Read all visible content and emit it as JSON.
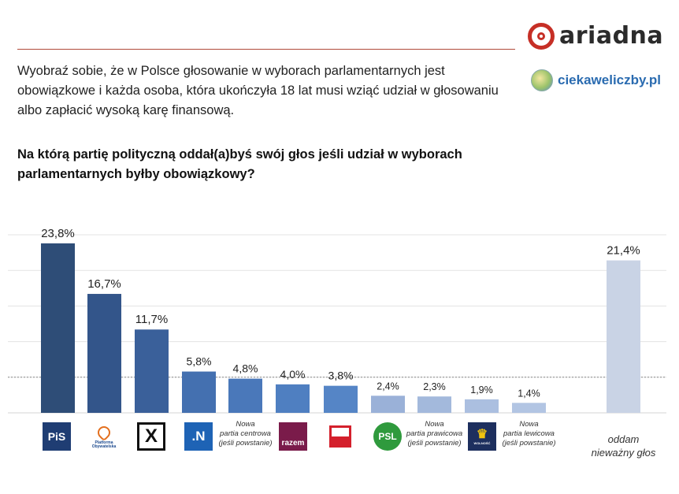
{
  "brand": {
    "ariadna": "ariadna",
    "ciekawe": "ciekaweliczby.pl"
  },
  "intro": "Wyobraź sobie, że w Polsce głosowanie w wyborach parlamentarnych jest obowiązkowe i każda osoba, która ukończyła 18 lat musi wziąć udział w głosowaniu albo zapłacić wysoką karę finansową.",
  "question": "Na którą partię polityczną oddał(a)byś swój głos jeśli udział w wyborach parlamentarnych byłby obowiązkowy?",
  "logos": {
    "pis": "PiS",
    "po_line1": "Platforma",
    "po_line2": "Obywatelska",
    "kukiz": "X",
    "nowoczesna": ".N",
    "razem": "razem",
    "psl": "PSL",
    "korwin": "WOLNOŚĆ"
  },
  "chart_data": {
    "type": "bar",
    "values": [
      23.8,
      16.7,
      11.7,
      5.8,
      4.8,
      4.0,
      3.8,
      2.4,
      2.3,
      1.9,
      1.4,
      21.4
    ],
    "value_labels": [
      "23,8%",
      "16,7%",
      "11,7%",
      "5,8%",
      "4,8%",
      "4,0%",
      "3,8%",
      "2,4%",
      "2,3%",
      "1,9%",
      "1,4%",
      "21,4%"
    ],
    "category_text": [
      [],
      [],
      [],
      [],
      [
        "Nowa",
        "partia centrowa",
        "(jeśli powstanie)"
      ],
      [],
      [],
      [],
      [
        "Nowa",
        "partia prawicowa",
        "(jeśli powstanie)"
      ],
      [],
      [
        "Nowa",
        "partia lewicowa",
        "(jeśli powstanie)"
      ],
      [
        "oddam",
        "nieważny głos"
      ]
    ],
    "ylim": [
      0,
      25
    ],
    "grid": true,
    "colors": [
      "#2e4d77",
      "#33558a",
      "#3a609a",
      "#4470b0",
      "#4a78ba",
      "#4f7fc1",
      "#5585c6",
      "#9ab1d8",
      "#a3b9dc",
      "#abbfe0",
      "#b2c5e3",
      "#c9d3e5"
    ]
  }
}
